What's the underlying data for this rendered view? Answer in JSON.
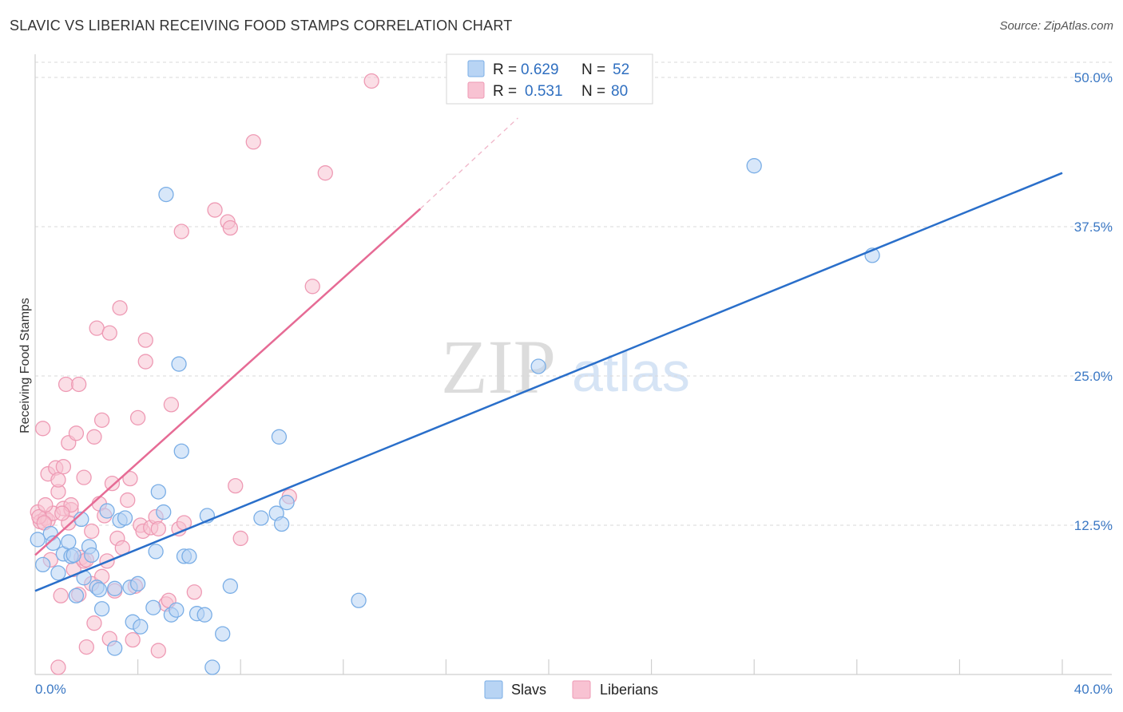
{
  "header": {
    "title": "SLAVIC VS LIBERIAN RECEIVING FOOD STAMPS CORRELATION CHART",
    "source": "Source: ZipAtlas.com"
  },
  "watermark": {
    "zip": "ZIP",
    "atlas": "atlas"
  },
  "legend": {
    "r_label": "R =",
    "n_label": "N =",
    "series": [
      {
        "name": "Slavs",
        "r": "0.629",
        "n": "52",
        "fill": "#b8d4f4",
        "stroke": "#7aaee6"
      },
      {
        "name": "Liberians",
        "r": "0.531",
        "n": "80",
        "fill": "#f8c2d2",
        "stroke": "#ee9ab4"
      }
    ]
  },
  "chart_data": {
    "type": "scatter",
    "title": "SLAVIC VS LIBERIAN RECEIVING FOOD STAMPS CORRELATION CHART",
    "xlabel": "",
    "ylabel": "Receiving Food Stamps",
    "xlim": [
      0,
      40
    ],
    "ylim": [
      0,
      51
    ],
    "x_tick_labels": [
      {
        "value": 0,
        "label": "0.0%"
      },
      {
        "value": 40,
        "label": "40.0%"
      }
    ],
    "x_minor_ticks": [
      4,
      8,
      12,
      16,
      20,
      24,
      28,
      32,
      36,
      40
    ],
    "y_ticks": [
      {
        "value": 12.5,
        "label": "12.5%"
      },
      {
        "value": 25,
        "label": "25.0%"
      },
      {
        "value": 37.5,
        "label": "37.5%"
      },
      {
        "value": 50,
        "label": "50.0%"
      }
    ],
    "colors": {
      "slavs_line": "#2a6fca",
      "liberians_line": "#e66b95",
      "tick_text": "#3b78c4",
      "grid": "#d9d9d9"
    },
    "series": [
      {
        "name": "Slavs",
        "trend": {
          "x0": 0,
          "y0": 7.0,
          "x1": 40,
          "y1": 42.0
        },
        "points": [
          [
            0.3,
            9.2
          ],
          [
            0.6,
            11.8
          ],
          [
            0.7,
            11.0
          ],
          [
            0.9,
            8.5
          ],
          [
            1.1,
            10.1
          ],
          [
            1.3,
            11.1
          ],
          [
            1.4,
            9.9
          ],
          [
            1.6,
            6.6
          ],
          [
            1.8,
            13.0
          ],
          [
            1.9,
            8.1
          ],
          [
            2.1,
            10.7
          ],
          [
            2.2,
            10.0
          ],
          [
            2.4,
            7.3
          ],
          [
            2.5,
            7.1
          ],
          [
            2.6,
            5.5
          ],
          [
            2.8,
            13.7
          ],
          [
            3.1,
            2.2
          ],
          [
            3.1,
            7.2
          ],
          [
            3.3,
            12.9
          ],
          [
            3.5,
            13.1
          ],
          [
            3.7,
            7.3
          ],
          [
            3.8,
            4.4
          ],
          [
            4.0,
            7.6
          ],
          [
            4.1,
            4.0
          ],
          [
            4.6,
            5.6
          ],
          [
            4.7,
            10.3
          ],
          [
            4.8,
            15.3
          ],
          [
            5.0,
            13.6
          ],
          [
            5.1,
            40.2
          ],
          [
            5.3,
            5.0
          ],
          [
            5.5,
            5.4
          ],
          [
            5.6,
            26.0
          ],
          [
            5.7,
            18.7
          ],
          [
            5.8,
            9.9
          ],
          [
            6.0,
            9.9
          ],
          [
            6.3,
            5.1
          ],
          [
            6.6,
            5.0
          ],
          [
            6.7,
            13.3
          ],
          [
            6.9,
            0.6
          ],
          [
            7.3,
            3.4
          ],
          [
            7.6,
            7.4
          ],
          [
            8.8,
            13.1
          ],
          [
            9.4,
            13.5
          ],
          [
            9.5,
            19.9
          ],
          [
            9.6,
            12.6
          ],
          [
            9.8,
            14.4
          ],
          [
            12.6,
            6.2
          ],
          [
            19.6,
            25.8
          ],
          [
            28.0,
            42.6
          ],
          [
            32.6,
            35.1
          ],
          [
            0.1,
            11.3
          ],
          [
            1.5,
            10.0
          ]
        ]
      },
      {
        "name": "Liberians",
        "trend": {
          "x0": 0,
          "y0": 10.0,
          "x1": 15.0,
          "y1": 39.0
        },
        "trend_dashed": {
          "x0": 15.0,
          "y0": 39.0,
          "x1": 18.8,
          "y1": 46.6
        },
        "points": [
          [
            0.1,
            13.6
          ],
          [
            0.2,
            12.8
          ],
          [
            0.3,
            20.6
          ],
          [
            0.4,
            13.1
          ],
          [
            0.5,
            12.9
          ],
          [
            0.5,
            16.8
          ],
          [
            0.7,
            13.5
          ],
          [
            0.8,
            17.3
          ],
          [
            0.9,
            15.3
          ],
          [
            0.9,
            16.3
          ],
          [
            1.0,
            6.6
          ],
          [
            1.1,
            13.9
          ],
          [
            1.1,
            17.4
          ],
          [
            1.2,
            24.3
          ],
          [
            1.3,
            19.4
          ],
          [
            1.4,
            13.8
          ],
          [
            1.4,
            14.2
          ],
          [
            1.5,
            8.8
          ],
          [
            1.6,
            20.2
          ],
          [
            1.7,
            24.3
          ],
          [
            1.8,
            9.8
          ],
          [
            1.9,
            9.5
          ],
          [
            1.9,
            16.5
          ],
          [
            2.0,
            2.3
          ],
          [
            2.0,
            9.6
          ],
          [
            2.2,
            7.6
          ],
          [
            2.2,
            12.0
          ],
          [
            2.3,
            19.9
          ],
          [
            2.3,
            4.3
          ],
          [
            2.4,
            29.0
          ],
          [
            2.5,
            14.3
          ],
          [
            2.6,
            21.3
          ],
          [
            2.6,
            8.2
          ],
          [
            2.7,
            13.3
          ],
          [
            2.8,
            9.5
          ],
          [
            2.9,
            3.0
          ],
          [
            2.9,
            28.6
          ],
          [
            3.0,
            16.0
          ],
          [
            3.1,
            7.0
          ],
          [
            3.2,
            11.4
          ],
          [
            3.3,
            30.7
          ],
          [
            3.4,
            10.6
          ],
          [
            3.6,
            14.6
          ],
          [
            3.7,
            16.4
          ],
          [
            3.8,
            2.9
          ],
          [
            3.9,
            7.4
          ],
          [
            4.0,
            21.5
          ],
          [
            4.1,
            12.5
          ],
          [
            4.2,
            12.0
          ],
          [
            4.3,
            28.0
          ],
          [
            4.3,
            26.2
          ],
          [
            4.5,
            12.3
          ],
          [
            4.7,
            13.2
          ],
          [
            4.8,
            12.2
          ],
          [
            4.8,
            2.0
          ],
          [
            5.1,
            5.9
          ],
          [
            5.2,
            6.2
          ],
          [
            5.3,
            22.6
          ],
          [
            5.6,
            12.2
          ],
          [
            5.7,
            37.1
          ],
          [
            5.8,
            12.7
          ],
          [
            6.2,
            6.9
          ],
          [
            7.0,
            38.9
          ],
          [
            7.5,
            37.9
          ],
          [
            7.6,
            37.4
          ],
          [
            7.8,
            15.8
          ],
          [
            8.0,
            11.4
          ],
          [
            8.5,
            44.6
          ],
          [
            9.9,
            14.9
          ],
          [
            10.8,
            32.5
          ],
          [
            11.3,
            42.0
          ],
          [
            13.1,
            49.7
          ],
          [
            0.15,
            13.2
          ],
          [
            0.35,
            12.7
          ],
          [
            0.6,
            9.6
          ],
          [
            1.3,
            12.7
          ],
          [
            0.4,
            14.2
          ],
          [
            0.9,
            0.6
          ],
          [
            1.7,
            6.7
          ],
          [
            1.05,
            13.5
          ]
        ]
      }
    ]
  }
}
